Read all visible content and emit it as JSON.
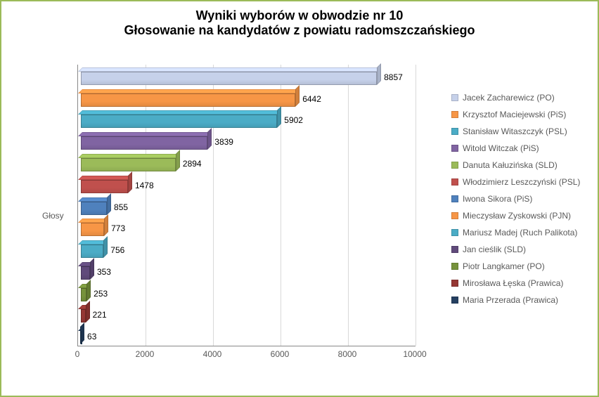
{
  "title": {
    "line1": "Wyniki wyborów w obwodzie nr 10",
    "line2": "Głosowanie na kandydatów z powiatu radomszczańskiego",
    "fontsize": 18,
    "color": "#000000"
  },
  "chart": {
    "type": "bar-horizontal-3d",
    "y_axis_label": "Głosy",
    "y_axis_label_fontsize": 12,
    "xlim": [
      0,
      10000
    ],
    "xtick_step": 2000,
    "xticks": [
      0,
      2000,
      4000,
      6000,
      8000,
      10000
    ],
    "xtick_fontsize": 12,
    "data_label_fontsize": 12,
    "legend_fontsize": 12,
    "background_color": "#ffffff",
    "grid_color": "#d9d9d9",
    "border_color": "#9bbb59",
    "series": [
      {
        "name": "Jacek Zacharewicz (PO)",
        "value": 8857,
        "color": "#c6d1ea"
      },
      {
        "name": "Krzysztof Maciejewski (PiS)",
        "value": 6442,
        "color": "#f79646"
      },
      {
        "name": "Stanisław Witaszczyk (PSL)",
        "value": 5902,
        "color": "#4bacc6"
      },
      {
        "name": "Witold Witczak (PiS)",
        "value": 3839,
        "color": "#8064a2"
      },
      {
        "name": "Danuta Kałuzińska (SLD)",
        "value": 2894,
        "color": "#9bbb59"
      },
      {
        "name": "Włodzimierz Leszczyński (PSL)",
        "value": 1478,
        "color": "#c0504d"
      },
      {
        "name": "Iwona Sikora (PiS)",
        "value": 855,
        "color": "#4f81bd"
      },
      {
        "name": "Mieczysław Zyskowski (PJN)",
        "value": 773,
        "color": "#f79646"
      },
      {
        "name": "Mariusz Madej (Ruch Palikota)",
        "value": 756,
        "color": "#4bacc6"
      },
      {
        "name": "Jan cieślik  (SLD)",
        "value": 353,
        "color": "#604a7b"
      },
      {
        "name": "Piotr Langkamer (PO)",
        "value": 253,
        "color": "#76923c"
      },
      {
        "name": "Mirosława Łęska (Prawica)",
        "value": 221,
        "color": "#953734"
      },
      {
        "name": "Maria Przerada (Prawica)",
        "value": 63,
        "color": "#254061"
      }
    ]
  }
}
